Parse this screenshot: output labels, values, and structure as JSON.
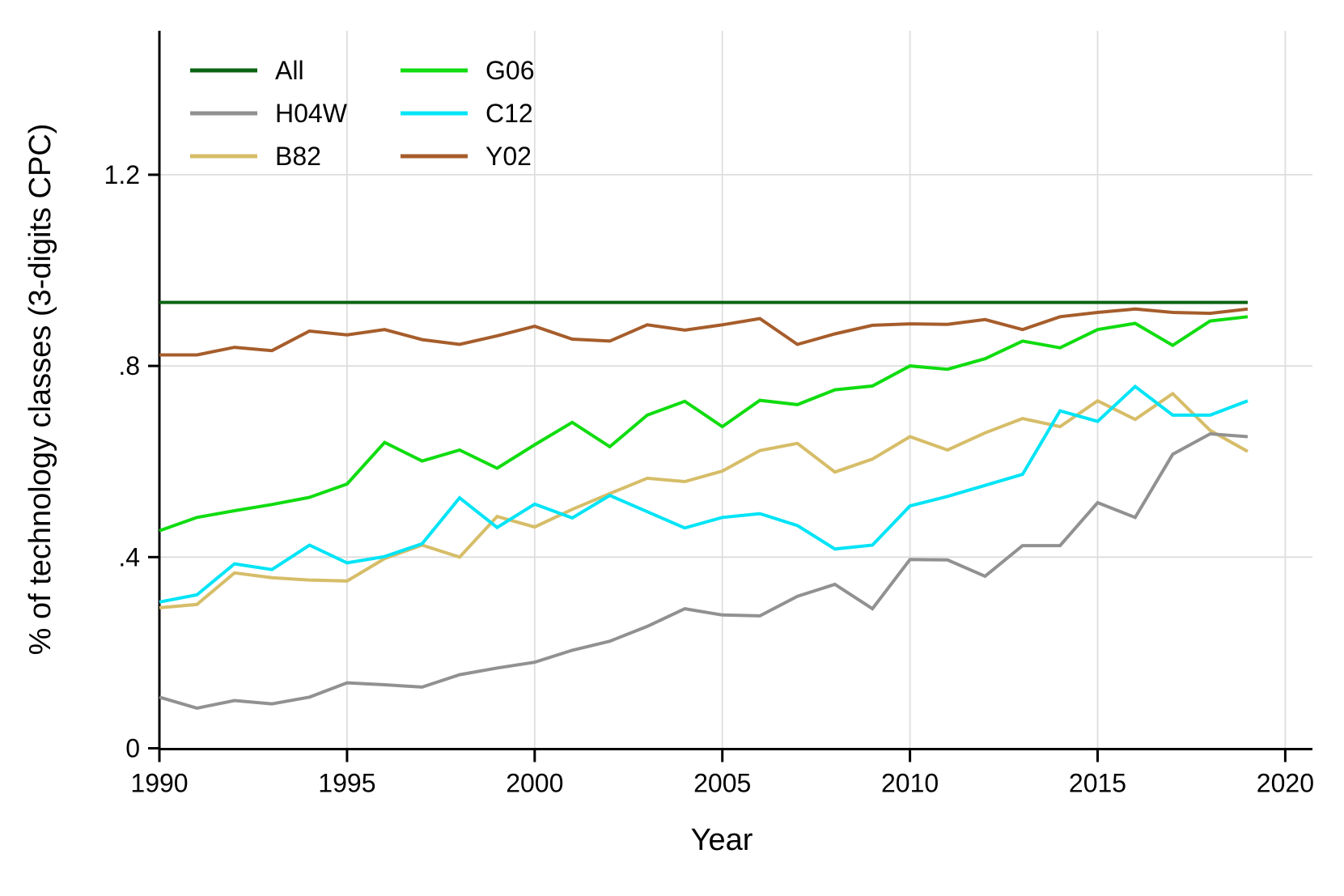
{
  "figure": {
    "background": "#ffffff"
  },
  "chart_data": {
    "type": "line",
    "title": "",
    "xlabel": "Year",
    "ylabel": "% of technology classes (3-digits CPC)",
    "grid": true,
    "xlim": [
      1990,
      2020.7
    ],
    "ylim": [
      0,
      1.5
    ],
    "x_ticks": [
      {
        "value": 1990,
        "label": "1990"
      },
      {
        "value": 1995,
        "label": "1995"
      },
      {
        "value": 2000,
        "label": "2000"
      },
      {
        "value": 2005,
        "label": "2005"
      },
      {
        "value": 2010,
        "label": "2010"
      },
      {
        "value": 2015,
        "label": "2015"
      },
      {
        "value": 2020,
        "label": "2020"
      }
    ],
    "y_ticks": [
      {
        "value": 0,
        "label": "0"
      },
      {
        "value": 0.4,
        "label": ".4"
      },
      {
        "value": 0.8,
        "label": ".8"
      },
      {
        "value": 1.2,
        "label": "1.2"
      }
    ],
    "x": [
      1990,
      1991,
      1992,
      1993,
      1994,
      1995,
      1996,
      1997,
      1998,
      1999,
      2000,
      2001,
      2002,
      2003,
      2004,
      2005,
      2006,
      2007,
      2008,
      2009,
      2010,
      2011,
      2012,
      2013,
      2014,
      2015,
      2016,
      2017,
      2018,
      2019
    ],
    "series": [
      {
        "name": "All",
        "color": "#0b6413",
        "values": [
          0.933,
          0.933,
          0.933,
          0.933,
          0.933,
          0.933,
          0.933,
          0.933,
          0.933,
          0.933,
          0.933,
          0.933,
          0.933,
          0.933,
          0.933,
          0.933,
          0.933,
          0.933,
          0.933,
          0.933,
          0.933,
          0.933,
          0.933,
          0.933,
          0.933,
          0.933,
          0.933,
          0.933,
          0.933,
          0.933
        ]
      },
      {
        "name": "B82",
        "color": "#d6bd68",
        "values": [
          0.294,
          0.301,
          0.367,
          0.357,
          0.352,
          0.35,
          0.397,
          0.425,
          0.4,
          0.485,
          0.463,
          0.5,
          0.533,
          0.565,
          0.558,
          0.58,
          0.623,
          0.638,
          0.578,
          0.605,
          0.652,
          0.624,
          0.66,
          0.69,
          0.673,
          0.727,
          0.688,
          0.742,
          0.665,
          0.621
        ]
      },
      {
        "name": "H04W",
        "color": "#919191",
        "values": [
          0.107,
          0.084,
          0.1,
          0.093,
          0.107,
          0.137,
          0.133,
          0.128,
          0.154,
          0.168,
          0.18,
          0.205,
          0.224,
          0.255,
          0.292,
          0.279,
          0.277,
          0.318,
          0.343,
          0.292,
          0.395,
          0.394,
          0.36,
          0.424,
          0.424,
          0.514,
          0.483,
          0.615,
          0.658,
          0.652
        ]
      },
      {
        "name": "G06",
        "color": "#10dc10",
        "values": [
          0.455,
          0.483,
          0.497,
          0.51,
          0.525,
          0.553,
          0.64,
          0.601,
          0.624,
          0.586,
          0.635,
          0.682,
          0.631,
          0.697,
          0.726,
          0.673,
          0.728,
          0.719,
          0.75,
          0.758,
          0.8,
          0.793,
          0.815,
          0.852,
          0.838,
          0.876,
          0.889,
          0.843,
          0.894,
          0.903
        ]
      },
      {
        "name": "C12",
        "color": "#00e4f6",
        "values": [
          0.306,
          0.321,
          0.386,
          0.374,
          0.425,
          0.388,
          0.401,
          0.428,
          0.524,
          0.462,
          0.511,
          0.482,
          0.529,
          0.495,
          0.461,
          0.483,
          0.491,
          0.466,
          0.417,
          0.425,
          0.507,
          0.527,
          0.55,
          0.573,
          0.706,
          0.684,
          0.757,
          0.697,
          0.697,
          0.727
        ]
      },
      {
        "name": "Y02",
        "color": "#a65d2b",
        "values": [
          0.823,
          0.823,
          0.839,
          0.832,
          0.873,
          0.865,
          0.876,
          0.855,
          0.845,
          0.863,
          0.883,
          0.856,
          0.852,
          0.886,
          0.875,
          0.886,
          0.899,
          0.845,
          0.867,
          0.885,
          0.888,
          0.887,
          0.897,
          0.876,
          0.903,
          0.912,
          0.919,
          0.912,
          0.91,
          0.919
        ]
      }
    ],
    "legend": {
      "position": "top-left",
      "columns": [
        [
          "All",
          "H04W",
          "B82"
        ],
        [
          "G06",
          "C12",
          "Y02"
        ]
      ]
    }
  }
}
